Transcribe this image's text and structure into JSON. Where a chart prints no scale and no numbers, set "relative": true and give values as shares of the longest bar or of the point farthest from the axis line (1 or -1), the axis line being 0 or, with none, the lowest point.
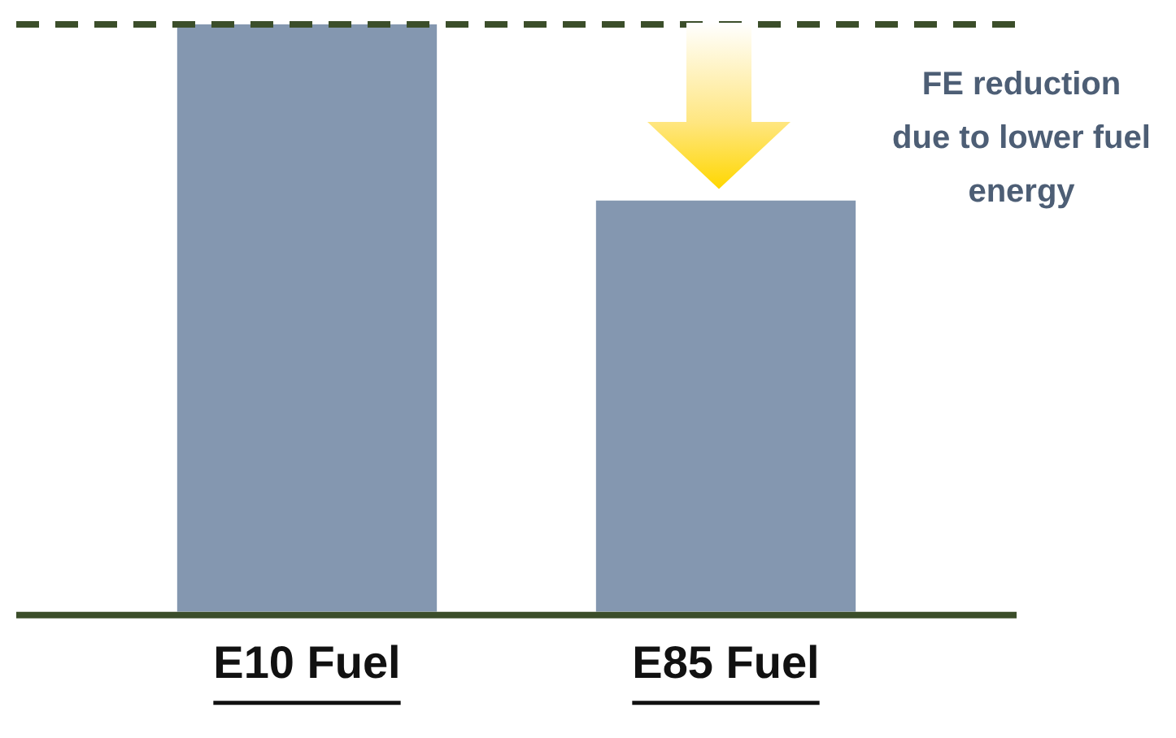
{
  "chart_data": {
    "type": "bar",
    "relative": true,
    "categories": [
      "E10 Fuel",
      "E85 Fuel"
    ],
    "values": [
      1,
      0.7
    ],
    "color": "#8497b0",
    "ref_lines": [
      {
        "axis": "y",
        "value": 1,
        "color": "#3b4e2a",
        "line_style": "dashed"
      }
    ],
    "annotations": [
      "FE reduction due to lower fuel energy"
    ],
    "grid": false,
    "legend": false
  }
}
